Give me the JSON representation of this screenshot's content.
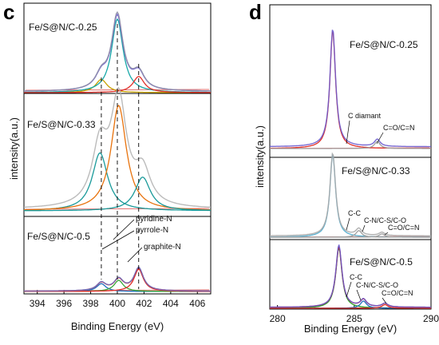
{
  "chart_data": [
    {
      "panel": "c",
      "type": "line",
      "xlabel": "Binding Energy (eV)",
      "ylabel": "intensity(a.u.)",
      "xlim": [
        393,
        407
      ],
      "x_ticks": [
        "394",
        "396",
        "398",
        "400",
        "402",
        "404",
        "406"
      ],
      "reference_lines_eV": [
        398.8,
        400.0,
        401.6
      ],
      "annotations": [
        "pyridine-N",
        "pyrrole-N",
        "graphite-N"
      ],
      "spectra": [
        {
          "sample": "Fe/S@N/C-0.25",
          "peaks": [
            {
              "assignment": "pyridine-N",
              "center": 398.8,
              "height": 0.18,
              "color": "#c8a000"
            },
            {
              "assignment": "pyrrole-N",
              "center": 400.0,
              "height": 1.0,
              "color": "#18a8a8"
            },
            {
              "assignment": "graphite-N",
              "center": 401.6,
              "height": 0.22,
              "color": "#e0302a"
            }
          ],
          "envelope_colors": [
            "#6a5acd",
            "#9090a8"
          ]
        },
        {
          "sample": "Fe/S@N/C-0.33",
          "peaks": [
            {
              "assignment": "pyridine-N",
              "center": 398.7,
              "height": 0.55,
              "color": "#1a9a9a"
            },
            {
              "assignment": "pyrrole-N",
              "center": 400.1,
              "height": 1.0,
              "color": "#e8720c"
            },
            {
              "assignment": "graphite-N",
              "center": 401.9,
              "height": 0.32,
              "color": "#1a9a9a"
            }
          ],
          "envelope_colors": [
            "#b4b4b4"
          ]
        },
        {
          "sample": "Fe/S@N/C-0.5",
          "peaks": [
            {
              "assignment": "pyridine-N",
              "center": 398.8,
              "height": 0.35,
              "color": "#2070c0"
            },
            {
              "assignment": "pyrrole-N",
              "center": 400.1,
              "height": 0.5,
              "color": "#38a838"
            },
            {
              "assignment": "graphite-N",
              "center": 401.6,
              "height": 1.0,
              "color": "#e0302a"
            }
          ],
          "envelope_colors": [
            "#d01818",
            "#7070c0"
          ]
        }
      ]
    },
    {
      "panel": "d",
      "type": "line",
      "xlabel": "Binding Energy (eV)",
      "ylabel": "intensity(a.u.)",
      "xlim": [
        279.5,
        290
      ],
      "x_ticks": [
        "280",
        "285",
        "290"
      ],
      "spectra": [
        {
          "sample": "Fe/S@N/C-0.25",
          "annotations": [
            "C diamant",
            "C=O/C=N"
          ],
          "peaks": [
            {
              "assignment": "C diamant",
              "center": 283.6,
              "height": 1.0,
              "color": "#e0302a"
            },
            {
              "assignment": "C=O/C=N",
              "center": 286.5,
              "height": 0.06,
              "color": "#a0a0a0"
            }
          ],
          "envelope_colors": [
            "#6a5acd"
          ]
        },
        {
          "sample": "Fe/S@N/C-0.33",
          "annotations": [
            "C-C",
            "C-N/C-S/C-O",
            "C=O/C=N"
          ],
          "peaks": [
            {
              "assignment": "C-C",
              "center": 283.6,
              "height": 1.0,
              "color": "#5ab0d0"
            },
            {
              "assignment": "C-N/C-S/C-O",
              "center": 285.3,
              "height": 0.08,
              "color": "#a0a0a0"
            },
            {
              "assignment": "C=O/C=N",
              "center": 286.8,
              "height": 0.04,
              "color": "#a0a0a0"
            }
          ],
          "envelope_colors": [
            "#a8a8a8"
          ]
        },
        {
          "sample": "Fe/S@N/C-0.5",
          "annotations": [
            "C-C",
            "C-N/C-S/C-O",
            "C=O/C=N"
          ],
          "peaks": [
            {
              "assignment": "C-C",
              "center": 284.0,
              "height": 1.0,
              "color": "#28a028"
            },
            {
              "assignment": "C-N/C-S/C-O",
              "center": 285.6,
              "height": 0.12,
              "color": "#2070c0"
            },
            {
              "assignment": "C=O/C=N",
              "center": 287.0,
              "height": 0.06,
              "color": "#e0302a"
            }
          ],
          "envelope_colors": [
            "#d01818",
            "#6a5acd"
          ]
        }
      ]
    }
  ],
  "panels": {
    "c": {
      "letter": "c",
      "xlabel": "Binding Energy (eV)",
      "ylabel": "intensity(a.u.)",
      "samples": [
        "Fe/S@N/C-0.25",
        "Fe/S@N/C-0.33",
        "Fe/S@N/C-0.5"
      ],
      "annotations": [
        "pyridine-N",
        "pyrrole-N",
        "graphite-N"
      ],
      "ticks": [
        "394",
        "396",
        "398",
        "400",
        "402",
        "404",
        "406"
      ]
    },
    "d": {
      "letter": "d",
      "xlabel": "Binding Energy (eV)",
      "ylabel": "intensity(a.u.)",
      "samples": [
        "Fe/S@N/C-0.25",
        "Fe/S@N/C-0.33",
        "Fe/S@N/C-0.5"
      ],
      "ann_top": [
        "C diamant",
        "C=O/C=N"
      ],
      "ann_mid": [
        "C-C",
        "C-N/C-S/C-O",
        "C=O/C=N"
      ],
      "ann_bot": [
        "C-C",
        "C-N/C-S/C-O",
        "C=O/C=N"
      ],
      "ticks": [
        "280",
        "285",
        "290"
      ]
    }
  }
}
